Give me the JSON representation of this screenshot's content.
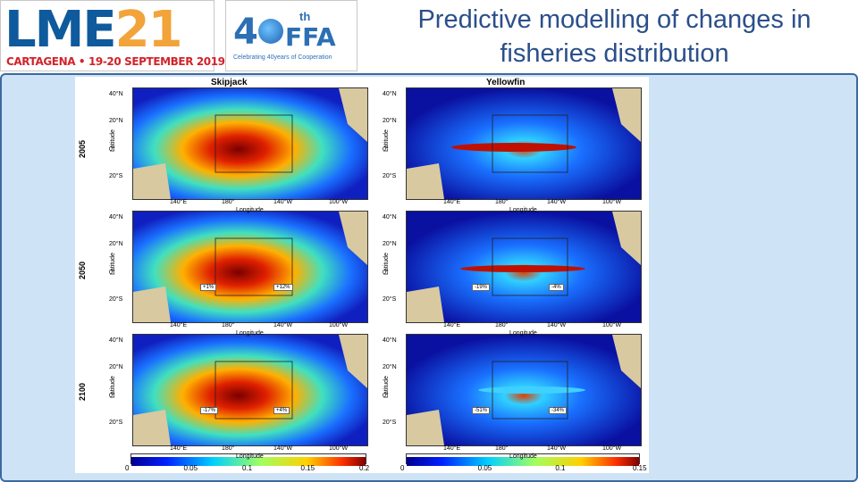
{
  "header": {
    "title_line1": "Predictive modelling of changes in",
    "title_line2": "fisheries distribution",
    "logo_lme_main_1": "LME",
    "logo_lme_main_2": "21",
    "logo_lme_sub": "CARTAGENA • 19-20 SEPTEMBER 2019",
    "logo_ffa_number": "4",
    "logo_ffa_th": "th",
    "logo_ffa_name": "FFA",
    "logo_ffa_sub": "Celebrating 40years of Cooperation"
  },
  "figure": {
    "species": [
      "Skipjack",
      "Yellowfin"
    ],
    "years": [
      "2005",
      "2050",
      "2100"
    ],
    "lat_ticks": [
      "40°N",
      "20°N",
      "0°",
      "20°S"
    ],
    "lon_ticks": [
      "140°E",
      "180°",
      "140°W",
      "100°W"
    ],
    "xlabel": "Longitude",
    "ylabel": "Latitude",
    "changes": {
      "skipjack_2050": [
        "+1%",
        "+12%"
      ],
      "skipjack_2100": [
        "-17%",
        "+4%"
      ],
      "yellowfin_2050": [
        "-19%",
        "-4%"
      ],
      "yellowfin_2100": [
        "-51%",
        "-34%"
      ]
    },
    "colorbar_skipjack": [
      "0",
      "0.05",
      "0.1",
      "0.15",
      "0.2"
    ],
    "colorbar_yellowfin": [
      "0",
      "0.05",
      "0.1",
      "0.15"
    ]
  }
}
